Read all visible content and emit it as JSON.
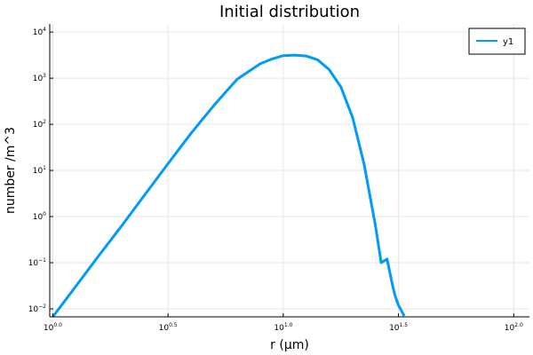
{
  "chart_data": {
    "type": "line",
    "title": "Initial distribution",
    "xlabel": "r (μm)",
    "ylabel": "number /m^3",
    "xscale": "log",
    "yscale": "log",
    "xlim": [
      0.97,
      117
    ],
    "ylim": [
      0.0067,
      15000
    ],
    "grid": true,
    "legend_position": "top-right",
    "x_ticks": [
      {
        "value": 1.0,
        "base": "10",
        "exp": "0.0"
      },
      {
        "value": 3.1623,
        "base": "10",
        "exp": "0.5"
      },
      {
        "value": 10.0,
        "base": "10",
        "exp": "1.0"
      },
      {
        "value": 31.623,
        "base": "10",
        "exp": "1.5"
      },
      {
        "value": 100.0,
        "base": "10",
        "exp": "2.0"
      }
    ],
    "y_ticks": [
      {
        "value": 0.01,
        "base": "10",
        "exp": "−2"
      },
      {
        "value": 0.1,
        "base": "10",
        "exp": "−1"
      },
      {
        "value": 1,
        "base": "10",
        "exp": "0"
      },
      {
        "value": 10,
        "base": "10",
        "exp": "1"
      },
      {
        "value": 100,
        "base": "10",
        "exp": "2"
      },
      {
        "value": 1000,
        "base": "10",
        "exp": "3"
      },
      {
        "value": 10000,
        "base": "10",
        "exp": "4"
      }
    ],
    "series": [
      {
        "name": "y1",
        "color": "#009af9",
        "x": [
          1.0,
          1.26,
          1.58,
          2.0,
          2.51,
          3.16,
          3.98,
          5.01,
          6.31,
          7.94,
          8.91,
          10.0,
          11.2,
          12.6,
          14.1,
          15.8,
          17.8,
          20.0,
          22.4,
          25.1,
          26.6,
          28.2,
          29.9,
          30.5,
          31.6,
          33.5
        ],
        "y": [
          0.0067,
          0.031,
          0.14,
          0.65,
          3.0,
          14,
          64,
          260,
          950,
          2050,
          2600,
          3080,
          3170,
          3020,
          2500,
          1550,
          640,
          140,
          14,
          0.65,
          0.1,
          0.12,
          0.03,
          0.02,
          0.012,
          0.007
        ]
      }
    ]
  }
}
